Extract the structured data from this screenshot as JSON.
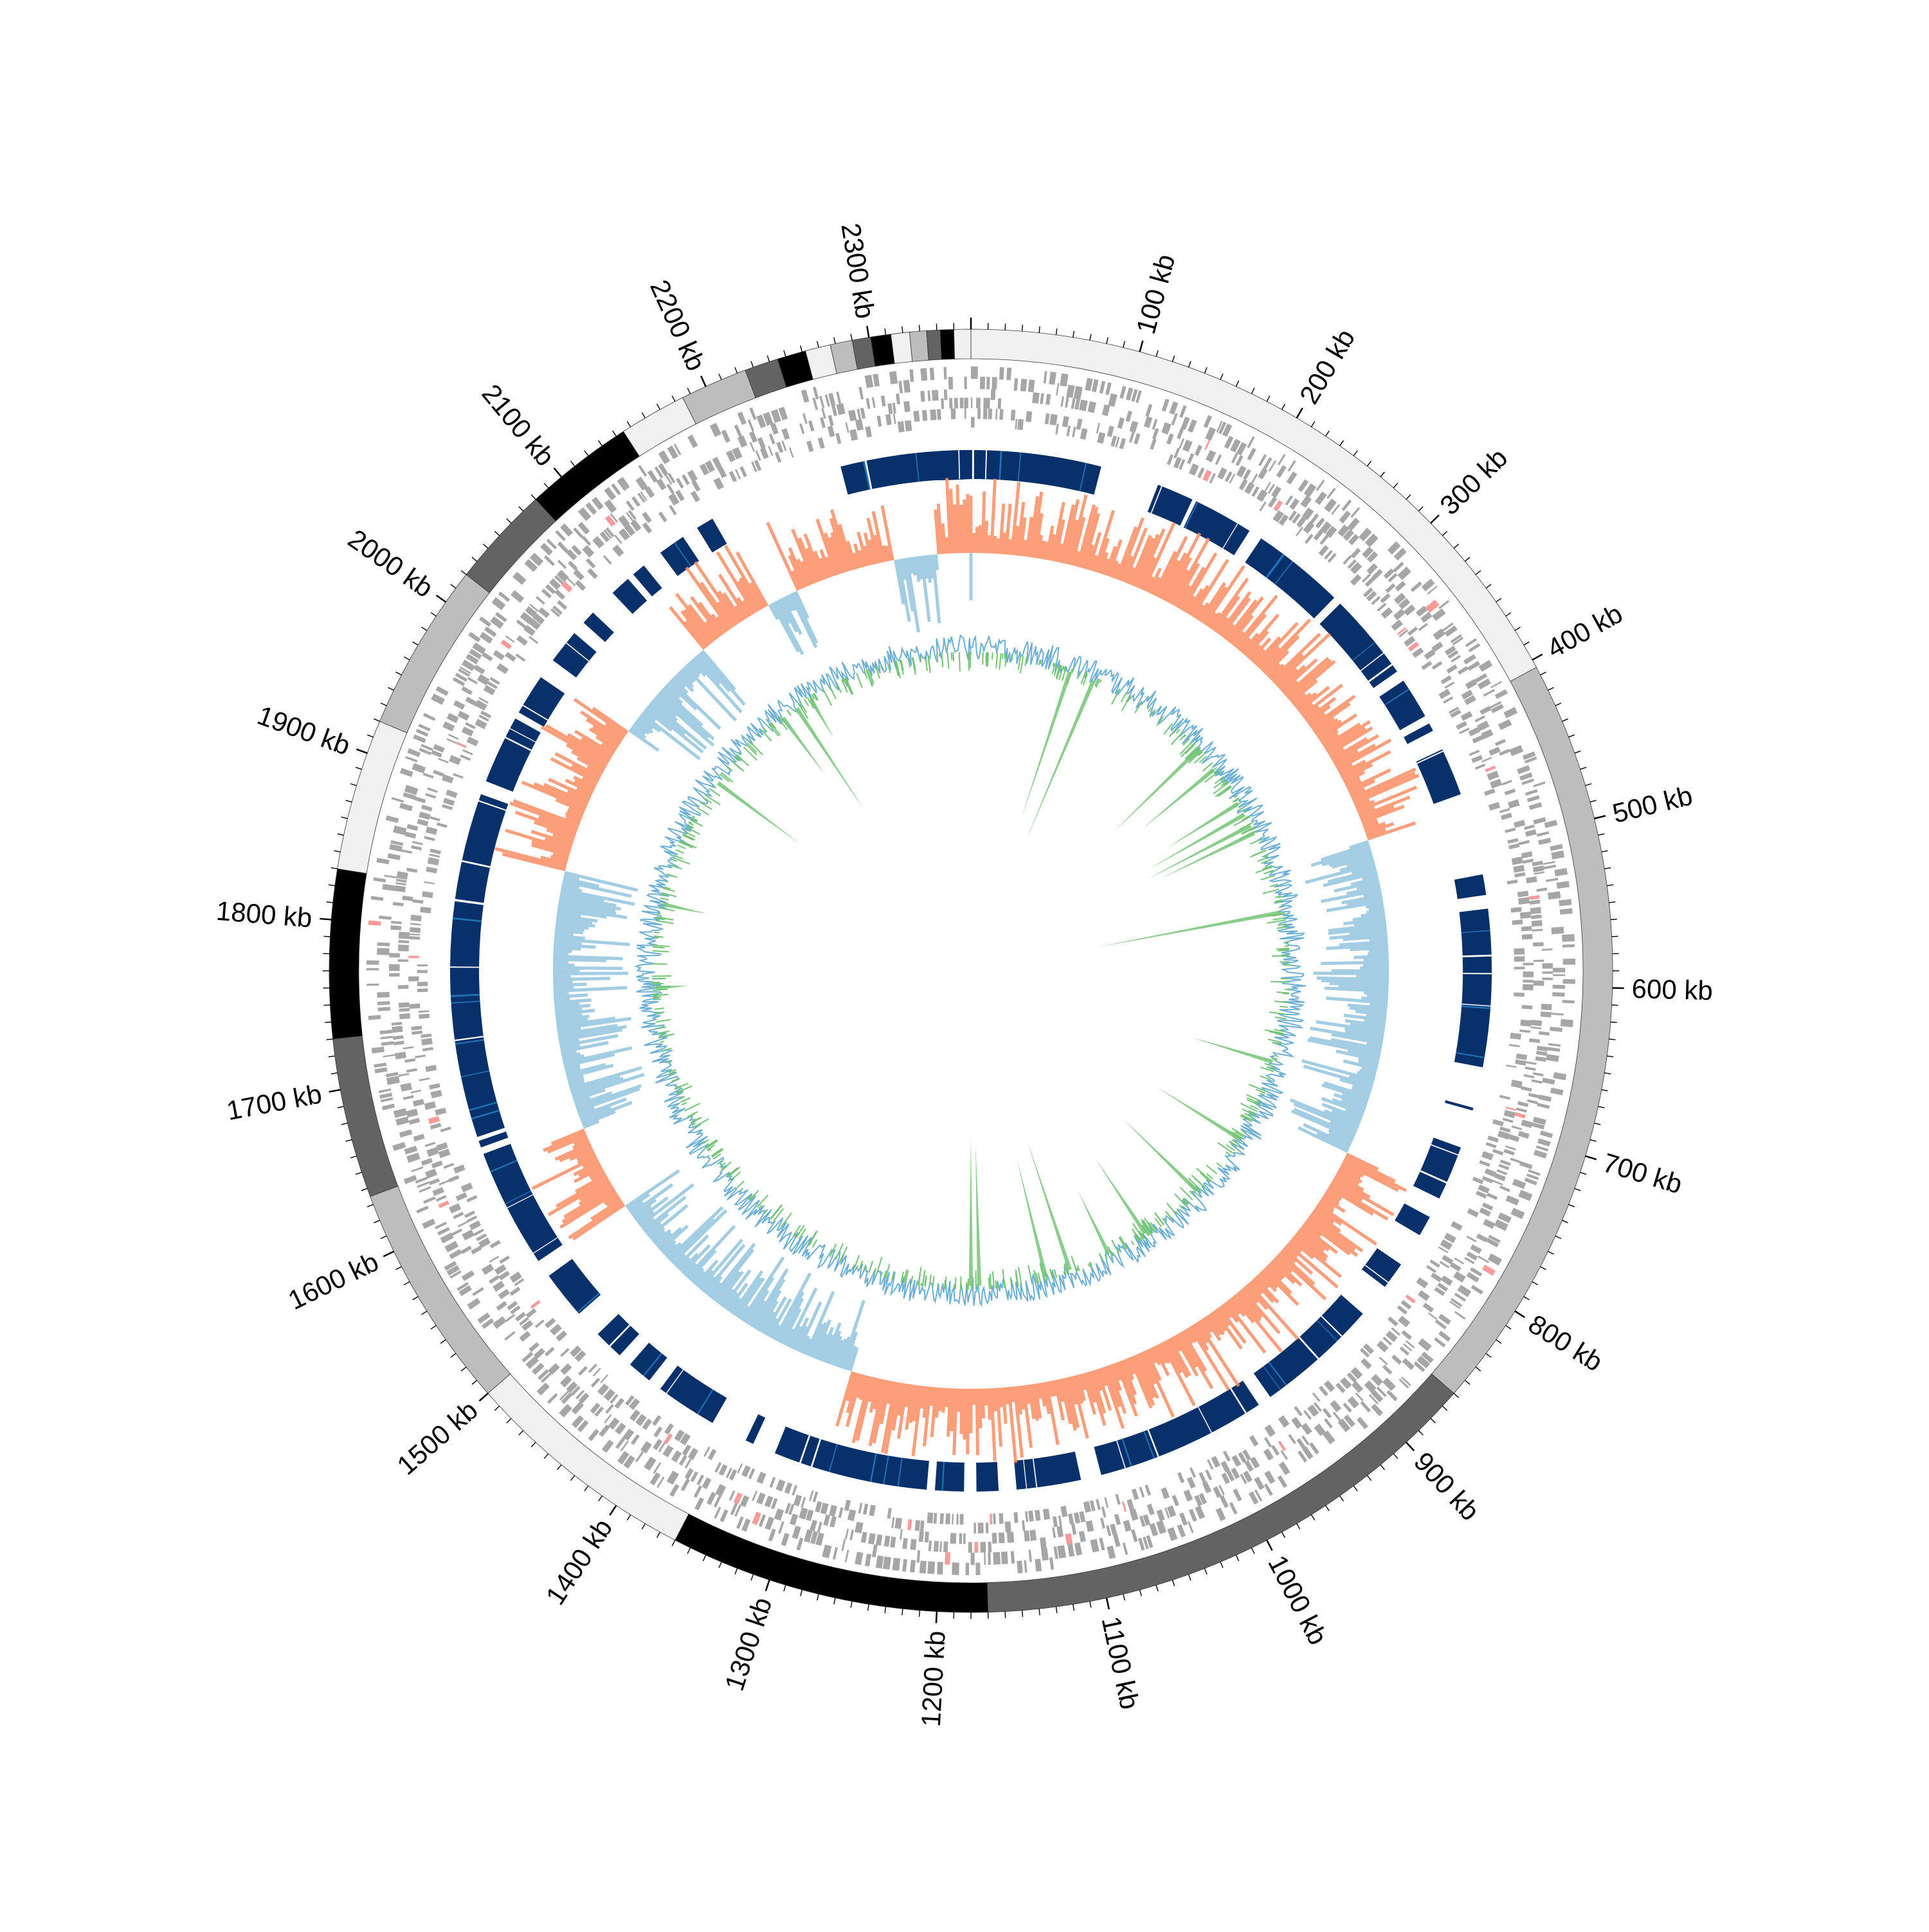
{
  "genome": {
    "total_kb": 2360,
    "tick_labels": [
      {
        "kb": 100,
        "label": "100 kb"
      },
      {
        "kb": 200,
        "label": "200 kb"
      },
      {
        "kb": 300,
        "label": "300 kb"
      },
      {
        "kb": 400,
        "label": "400 kb"
      },
      {
        "kb": 500,
        "label": "500 kb"
      },
      {
        "kb": 600,
        "label": "600 kb"
      },
      {
        "kb": 700,
        "label": "700 kb"
      },
      {
        "kb": 800,
        "label": "800 kb"
      },
      {
        "kb": 900,
        "label": "900 kb"
      },
      {
        "kb": 1000,
        "label": "1000 kb"
      },
      {
        "kb": 1100,
        "label": "1100 kb"
      },
      {
        "kb": 1200,
        "label": "1200 kb"
      },
      {
        "kb": 1300,
        "label": "1300 kb"
      },
      {
        "kb": 1400,
        "label": "1400 kb"
      },
      {
        "kb": 1500,
        "label": "1500 kb"
      },
      {
        "kb": 1600,
        "label": "1600 kb"
      },
      {
        "kb": 1700,
        "label": "1700 kb"
      },
      {
        "kb": 1800,
        "label": "1800 kb"
      },
      {
        "kb": 1900,
        "label": "1900 kb"
      },
      {
        "kb": 2000,
        "label": "2000 kb"
      },
      {
        "kb": 2100,
        "label": "2100 kb"
      },
      {
        "kb": 2200,
        "label": "2200 kb"
      },
      {
        "kb": 2300,
        "label": "2300 kb"
      }
    ],
    "minor_tick_kb": 10
  },
  "contig_ring": [
    {
      "start": 0,
      "end": 405,
      "color": "#f0f0f0"
    },
    {
      "start": 405,
      "end": 860,
      "color": "#bdbdbd"
    },
    {
      "start": 860,
      "end": 1170,
      "color": "#636363"
    },
    {
      "start": 1170,
      "end": 1360,
      "color": "#000000"
    },
    {
      "start": 1360,
      "end": 1500,
      "color": "#f0f0f0"
    },
    {
      "start": 1500,
      "end": 1635,
      "color": "#bdbdbd"
    },
    {
      "start": 1635,
      "end": 1730,
      "color": "#636363"
    },
    {
      "start": 1730,
      "end": 1830,
      "color": "#000000"
    },
    {
      "start": 1830,
      "end": 1920,
      "color": "#f0f0f0"
    },
    {
      "start": 1920,
      "end": 2020,
      "color": "#bdbdbd"
    },
    {
      "start": 2020,
      "end": 2080,
      "color": "#636363"
    },
    {
      "start": 2080,
      "end": 2145,
      "color": "#000000"
    },
    {
      "start": 2145,
      "end": 2185,
      "color": "#f0f0f0"
    },
    {
      "start": 2185,
      "end": 2225,
      "color": "#bdbdbd"
    },
    {
      "start": 2225,
      "end": 2245,
      "color": "#636363"
    },
    {
      "start": 2245,
      "end": 2262,
      "color": "#000000"
    },
    {
      "start": 2262,
      "end": 2277,
      "color": "#f0f0f0"
    },
    {
      "start": 2277,
      "end": 2290,
      "color": "#bdbdbd"
    },
    {
      "start": 2290,
      "end": 2301,
      "color": "#636363"
    },
    {
      "start": 2301,
      "end": 2313,
      "color": "#000000"
    },
    {
      "start": 2313,
      "end": 2324,
      "color": "#f0f0f0"
    },
    {
      "start": 2324,
      "end": 2334,
      "color": "#bdbdbd"
    },
    {
      "start": 2334,
      "end": 2342,
      "color": "#636363"
    },
    {
      "start": 2342,
      "end": 2350,
      "color": "#000000"
    },
    {
      "start": 2350,
      "end": 2360,
      "color": "#f0f0f0"
    }
  ],
  "blue_blocks": [
    [
      -95,
      -27
    ],
    [
      -22,
      95
    ],
    [
      138,
      165
    ],
    [
      168,
      212
    ],
    [
      222,
      290
    ],
    [
      296,
      360
    ],
    [
      368,
      398
    ],
    [
      404,
      410
    ],
    [
      425,
      460
    ],
    [
      520,
      535
    ],
    [
      545,
      660
    ],
    [
      690,
      692
    ],
    [
      720,
      760
    ],
    [
      775,
      790
    ],
    [
      815,
      835
    ],
    [
      860,
      950
    ],
    [
      960,
      1085
    ],
    [
      1100,
      1147
    ],
    [
      1160,
      1176
    ],
    [
      1185,
      1206
    ],
    [
      1212,
      1325
    ],
    [
      1342,
      1348
    ],
    [
      1375,
      1420
    ],
    [
      1430,
      1448
    ],
    [
      1458,
      1480
    ],
    [
      1500,
      1535
    ],
    [
      1548,
      1635
    ],
    [
      1640,
      1645
    ],
    [
      1648,
      1900
    ],
    [
      1910,
      1960
    ],
    [
      1965,
      1995
    ],
    [
      2010,
      2035
    ],
    [
      2045,
      2055
    ],
    [
      2075,
      2090
    ],
    [
      2095,
      2105
    ],
    [
      2120,
      2140
    ],
    [
      2152,
      2165
    ]
  ],
  "colors": {
    "feature_gray": "#a6a6a6",
    "feature_accent": "#fb9a99",
    "block_blue": "#08306b",
    "block_blue_mid": "#2171b5",
    "skew_positive": "#fc8d62",
    "skew_negative": "#9ecae1",
    "gc_line": "#6baed6",
    "gc_fill": "#74c476",
    "tick_color": "#000000"
  }
}
